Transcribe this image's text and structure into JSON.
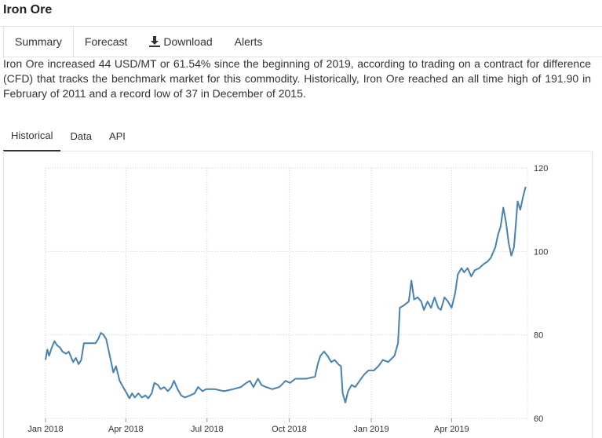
{
  "page": {
    "title": "Iron Ore"
  },
  "top_tabs": [
    {
      "label": "Summary",
      "icon": null
    },
    {
      "label": "Forecast",
      "icon": null
    },
    {
      "label": "Download",
      "icon": "download-icon"
    },
    {
      "label": "Alerts",
      "icon": null
    }
  ],
  "summary": "Iron Ore increased 44 USD/MT or 61.54% since the beginning of 2019, according to trading on a contract for difference (CFD) that tracks the benchmark market for this commodity. Historically, Iron Ore reached an all time high of 191.90 in February of 2011 and a record low of 37 in December of 2015.",
  "sub_tabs": [
    {
      "label": "Historical"
    },
    {
      "label": "Data"
    },
    {
      "label": "API"
    }
  ],
  "chart_data": {
    "type": "line",
    "line_color": "#4682b4",
    "grid": true,
    "y_axis_position": "right",
    "ylim": [
      60,
      120
    ],
    "xlim": [
      "2018-01-01",
      "2019-06-25"
    ],
    "yticks": [
      60,
      80,
      100,
      120
    ],
    "xticks": [
      {
        "date": "2018-01-01",
        "label": "Jan 2018"
      },
      {
        "date": "2018-04-01",
        "label": "Apr 2018"
      },
      {
        "date": "2018-07-01",
        "label": "Jul 2018"
      },
      {
        "date": "2018-10-01",
        "label": "Oct 2018"
      },
      {
        "date": "2019-01-01",
        "label": "Jan 2019"
      },
      {
        "date": "2019-04-01",
        "label": "Apr 2019"
      }
    ],
    "series": [
      {
        "points": [
          [
            "2018-01-01",
            74.0
          ],
          [
            "2018-01-03",
            76.5
          ],
          [
            "2018-01-05",
            75.0
          ],
          [
            "2018-01-08",
            77.0
          ],
          [
            "2018-01-11",
            78.5
          ],
          [
            "2018-01-14",
            77.5
          ],
          [
            "2018-01-17",
            77.0
          ],
          [
            "2018-01-20",
            76.0
          ],
          [
            "2018-01-24",
            75.5
          ],
          [
            "2018-01-27",
            76.0
          ],
          [
            "2018-02-01",
            73.5
          ],
          [
            "2018-02-04",
            74.5
          ],
          [
            "2018-02-07",
            73.0
          ],
          [
            "2018-02-10",
            74.0
          ],
          [
            "2018-02-13",
            78.0
          ],
          [
            "2018-02-20",
            78.0
          ],
          [
            "2018-02-26",
            78.0
          ],
          [
            "2018-03-01",
            79.0
          ],
          [
            "2018-03-04",
            80.5
          ],
          [
            "2018-03-07",
            80.0
          ],
          [
            "2018-03-10",
            79.0
          ],
          [
            "2018-03-14",
            75.0
          ],
          [
            "2018-03-18",
            71.0
          ],
          [
            "2018-03-21",
            72.5
          ],
          [
            "2018-03-25",
            69.0
          ],
          [
            "2018-03-29",
            67.5
          ],
          [
            "2018-04-02",
            66.0
          ],
          [
            "2018-04-05",
            64.8
          ],
          [
            "2018-04-08",
            66.0
          ],
          [
            "2018-04-11",
            65.0
          ],
          [
            "2018-04-15",
            66.0
          ],
          [
            "2018-04-19",
            65.0
          ],
          [
            "2018-04-23",
            65.5
          ],
          [
            "2018-04-26",
            64.8
          ],
          [
            "2018-04-30",
            66.0
          ],
          [
            "2018-05-03",
            68.5
          ],
          [
            "2018-05-07",
            68.0
          ],
          [
            "2018-05-10",
            67.0
          ],
          [
            "2018-05-14",
            67.5
          ],
          [
            "2018-05-18",
            66.5
          ],
          [
            "2018-05-22",
            67.5
          ],
          [
            "2018-05-25",
            69.0
          ],
          [
            "2018-05-29",
            67.0
          ],
          [
            "2018-06-02",
            65.5
          ],
          [
            "2018-06-06",
            65.0
          ],
          [
            "2018-06-12",
            65.5
          ],
          [
            "2018-06-17",
            66.0
          ],
          [
            "2018-06-21",
            67.5
          ],
          [
            "2018-06-26",
            66.5
          ],
          [
            "2018-06-30",
            67.0
          ],
          [
            "2018-07-10",
            67.0
          ],
          [
            "2018-07-20",
            66.5
          ],
          [
            "2018-07-30",
            67.0
          ],
          [
            "2018-08-08",
            67.5
          ],
          [
            "2018-08-14",
            68.5
          ],
          [
            "2018-08-18",
            69.0
          ],
          [
            "2018-08-22",
            67.5
          ],
          [
            "2018-08-27",
            69.5
          ],
          [
            "2018-08-31",
            68.0
          ],
          [
            "2018-09-05",
            67.5
          ],
          [
            "2018-09-12",
            67.0
          ],
          [
            "2018-09-20",
            67.5
          ],
          [
            "2018-09-27",
            69.0
          ],
          [
            "2018-10-02",
            68.5
          ],
          [
            "2018-10-08",
            69.5
          ],
          [
            "2018-10-20",
            69.5
          ],
          [
            "2018-10-30",
            70.0
          ],
          [
            "2018-11-02",
            73.0
          ],
          [
            "2018-11-05",
            75.0
          ],
          [
            "2018-11-09",
            76.0
          ],
          [
            "2018-11-13",
            75.0
          ],
          [
            "2018-11-17",
            73.5
          ],
          [
            "2018-11-21",
            74.0
          ],
          [
            "2018-11-25",
            73.0
          ],
          [
            "2018-11-28",
            72.5
          ],
          [
            "2018-11-30",
            66.0
          ],
          [
            "2018-12-03",
            63.8
          ],
          [
            "2018-12-06",
            66.5
          ],
          [
            "2018-12-10",
            68.0
          ],
          [
            "2018-12-14",
            67.5
          ],
          [
            "2018-12-19",
            69.0
          ],
          [
            "2018-12-24",
            70.5
          ],
          [
            "2018-12-29",
            71.5
          ],
          [
            "2019-01-04",
            71.5
          ],
          [
            "2019-01-09",
            72.5
          ],
          [
            "2019-01-14",
            74.0
          ],
          [
            "2019-01-20",
            73.5
          ],
          [
            "2019-01-27",
            75.0
          ],
          [
            "2019-01-31",
            78.0
          ],
          [
            "2019-02-02",
            86.5
          ],
          [
            "2019-02-06",
            87.0
          ],
          [
            "2019-02-12",
            88.0
          ],
          [
            "2019-02-15",
            93.0
          ],
          [
            "2019-02-18",
            88.5
          ],
          [
            "2019-02-22",
            89.0
          ],
          [
            "2019-02-26",
            88.0
          ],
          [
            "2019-03-01",
            86.0
          ],
          [
            "2019-03-05",
            88.0
          ],
          [
            "2019-03-09",
            86.5
          ],
          [
            "2019-03-13",
            89.0
          ],
          [
            "2019-03-17",
            86.5
          ],
          [
            "2019-03-20",
            86.0
          ],
          [
            "2019-03-24",
            89.0
          ],
          [
            "2019-03-28",
            88.0
          ],
          [
            "2019-04-01",
            86.5
          ],
          [
            "2019-04-05",
            90.0
          ],
          [
            "2019-04-08",
            94.5
          ],
          [
            "2019-04-12",
            96.0
          ],
          [
            "2019-04-15",
            95.0
          ],
          [
            "2019-04-19",
            96.0
          ],
          [
            "2019-04-23",
            94.0
          ],
          [
            "2019-04-27",
            95.5
          ],
          [
            "2019-05-02",
            96.0
          ],
          [
            "2019-05-07",
            97.0
          ],
          [
            "2019-05-11",
            97.5
          ],
          [
            "2019-05-15",
            98.5
          ],
          [
            "2019-05-20",
            101.0
          ],
          [
            "2019-05-23",
            104.0
          ],
          [
            "2019-05-26",
            106.0
          ],
          [
            "2019-05-29",
            110.5
          ],
          [
            "2019-06-01",
            107.0
          ],
          [
            "2019-06-04",
            102.0
          ],
          [
            "2019-06-07",
            99.0
          ],
          [
            "2019-06-10",
            101.0
          ],
          [
            "2019-06-14",
            112.0
          ],
          [
            "2019-06-17",
            110.0
          ],
          [
            "2019-06-20",
            113.0
          ],
          [
            "2019-06-23",
            115.5
          ]
        ]
      }
    ]
  }
}
